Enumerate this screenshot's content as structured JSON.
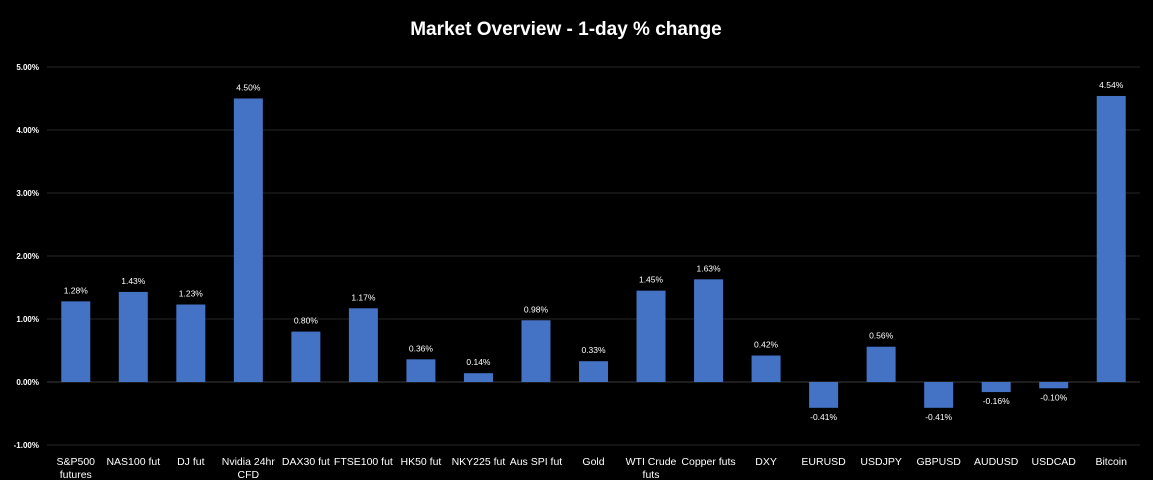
{
  "chart_data": {
    "type": "bar",
    "title": "Market Overview - 1-day % change",
    "xlabel": "",
    "ylabel": "",
    "ylim": [
      -1.0,
      5.0
    ],
    "yticks": [
      5.0,
      4.0,
      3.0,
      2.0,
      1.0,
      0.0,
      -1.0
    ],
    "ytick_labels": [
      "5.00%",
      "4.00%",
      "3.00%",
      "2.00%",
      "1.00%",
      "0.00%",
      "-1.00%"
    ],
    "grid": true,
    "legend": "none",
    "bar_color": "#4472C4",
    "categories": [
      [
        "S&P500",
        "futures"
      ],
      [
        "NAS100 fut"
      ],
      [
        "DJ fut"
      ],
      [
        "Nvidia 24hr",
        "CFD"
      ],
      [
        "DAX30 fut"
      ],
      [
        "FTSE100 fut"
      ],
      [
        "HK50 fut"
      ],
      [
        "NKY225 fut"
      ],
      [
        "Aus SPI fut"
      ],
      [
        "Gold"
      ],
      [
        "WTI Crude",
        "futs"
      ],
      [
        "Copper futs"
      ],
      [
        "DXY"
      ],
      [
        "EURUSD"
      ],
      [
        "USDJPY"
      ],
      [
        "GBPUSD"
      ],
      [
        "AUDUSD"
      ],
      [
        "USDCAD"
      ],
      [
        "Bitcoin"
      ]
    ],
    "values": [
      1.28,
      1.43,
      1.23,
      4.5,
      0.8,
      1.17,
      0.36,
      0.14,
      0.98,
      0.33,
      1.45,
      1.63,
      0.42,
      -0.41,
      0.56,
      -0.41,
      -0.16,
      -0.1,
      4.54
    ],
    "data_labels": [
      "1.28%",
      "1.43%",
      "1.23%",
      "4.50%",
      "0.80%",
      "1.17%",
      "0.36%",
      "0.14%",
      "0.98%",
      "0.33%",
      "1.45%",
      "1.63%",
      "0.42%",
      "-0.41%",
      "0.56%",
      "-0.41%",
      "-0.16%",
      "-0.10%",
      "4.54%"
    ]
  }
}
